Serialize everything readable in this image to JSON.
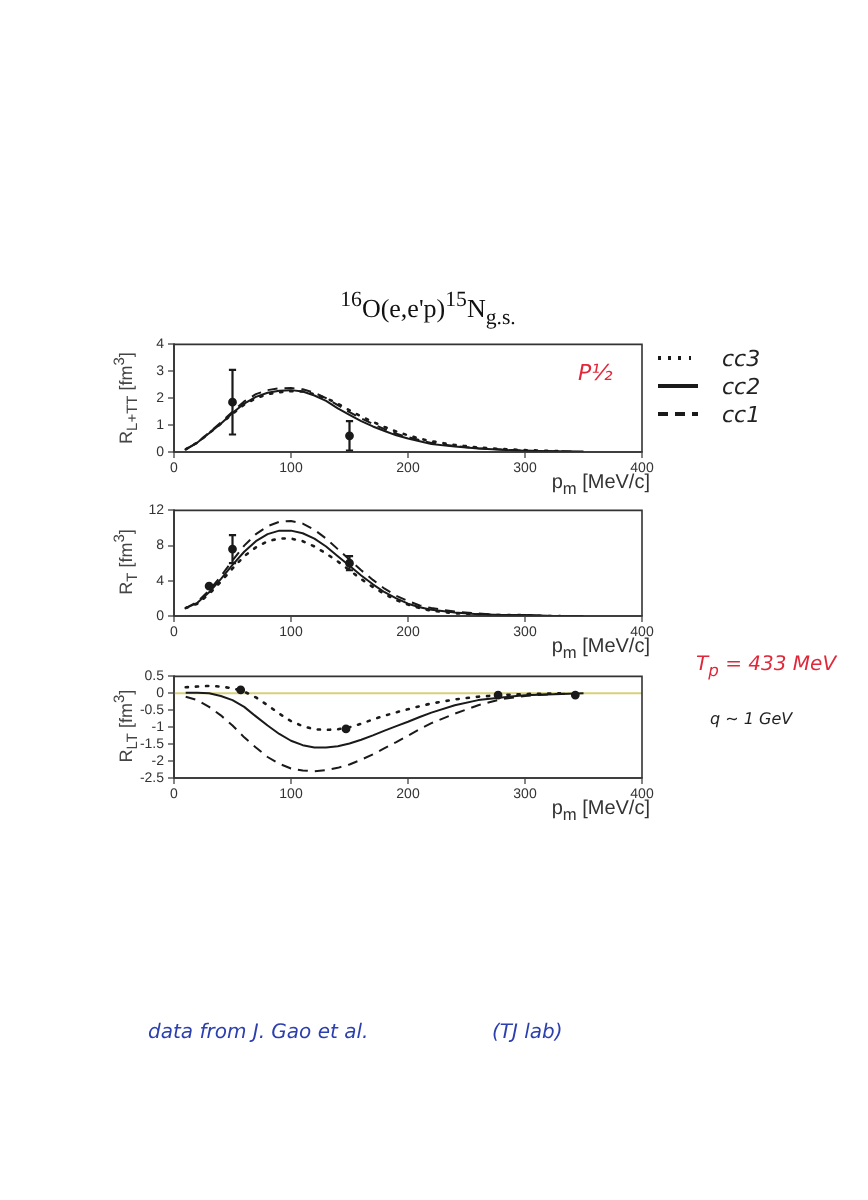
{
  "chart_data": [
    {
      "type": "line",
      "title": "$^{16}$O(e,e'p)$^{15}$N$_{g.s.}$",
      "xlabel": "p$_{m}$ [MeV/c]",
      "ylabel": "R$_{L+TT}$ [fm$^{3}$]",
      "xlim": [
        0,
        400
      ],
      "xticks": [
        0,
        100,
        200,
        300,
        400
      ],
      "ylim": [
        0,
        4
      ],
      "yticks": [
        0,
        1,
        2,
        3,
        4
      ],
      "legend": "right",
      "annotations": [
        "P½"
      ],
      "series": [
        {
          "name": "cc3",
          "color": "#1a1a1a",
          "line_style": "dotted",
          "x": [
            10,
            20,
            30,
            40,
            50,
            60,
            70,
            80,
            90,
            100,
            110,
            120,
            130,
            140,
            150,
            160,
            170,
            180,
            190,
            200,
            210,
            220,
            240,
            260,
            280,
            300,
            315,
            330
          ],
          "values": [
            0.1,
            0.35,
            0.7,
            1.05,
            1.42,
            1.76,
            2.0,
            2.15,
            2.22,
            2.26,
            2.25,
            2.15,
            2.0,
            1.8,
            1.55,
            1.32,
            1.12,
            0.93,
            0.76,
            0.62,
            0.5,
            0.4,
            0.26,
            0.17,
            0.11,
            0.07,
            0.05,
            0.03
          ]
        },
        {
          "name": "cc2",
          "color": "#1a1a1a",
          "line_style": "solid",
          "x": [
            10,
            20,
            30,
            40,
            50,
            60,
            70,
            80,
            90,
            100,
            110,
            120,
            130,
            140,
            150,
            160,
            170,
            180,
            190,
            200,
            210,
            220,
            240,
            260,
            280,
            300,
            325,
            350
          ],
          "values": [
            0.1,
            0.35,
            0.7,
            1.05,
            1.45,
            1.8,
            2.05,
            2.2,
            2.28,
            2.3,
            2.25,
            2.1,
            1.9,
            1.62,
            1.38,
            1.15,
            0.95,
            0.78,
            0.62,
            0.5,
            0.4,
            0.3,
            0.2,
            0.13,
            0.08,
            0.05,
            0.03,
            0.02
          ]
        },
        {
          "name": "cc1",
          "color": "#1a1a1a",
          "line_style": "dashed",
          "x": [
            10,
            20,
            30,
            40,
            50,
            60,
            70,
            80,
            90,
            100,
            110,
            120,
            130,
            140,
            150,
            160,
            170,
            180,
            190,
            200,
            210,
            220,
            240,
            260,
            280,
            300,
            320,
            340
          ],
          "values": [
            0.1,
            0.35,
            0.72,
            1.1,
            1.5,
            1.88,
            2.15,
            2.3,
            2.37,
            2.38,
            2.33,
            2.2,
            2.0,
            1.74,
            1.48,
            1.25,
            1.04,
            0.85,
            0.68,
            0.55,
            0.44,
            0.34,
            0.22,
            0.14,
            0.09,
            0.05,
            0.03,
            0.02
          ]
        },
        {
          "type": "scatter",
          "color": "#1a1a1a",
          "marker": "circle",
          "x": [
            50,
            150
          ],
          "values": [
            1.85,
            0.6
          ],
          "errors": [
            1.2,
            0.55
          ]
        }
      ]
    },
    {
      "type": "line",
      "xlabel": "p$_{m}$ [MeV/c]",
      "ylabel": "R$_{T}$ [fm$^{3}$]",
      "xlim": [
        0,
        400
      ],
      "xticks": [
        0,
        100,
        200,
        300,
        400
      ],
      "ylim": [
        0,
        12
      ],
      "yticks": [
        0,
        4,
        8,
        12
      ],
      "series": [
        {
          "color": "#1a1a1a",
          "line_style": "dotted",
          "x": [
            10,
            20,
            30,
            40,
            50,
            60,
            70,
            80,
            90,
            100,
            110,
            120,
            130,
            140,
            150,
            160,
            170,
            180,
            190,
            200,
            210,
            220,
            240,
            260,
            280,
            300,
            315,
            330
          ],
          "values": [
            0.9,
            1.4,
            2.5,
            3.9,
            5.4,
            6.8,
            7.8,
            8.5,
            8.8,
            8.8,
            8.5,
            7.9,
            7.1,
            6.2,
            5.2,
            4.2,
            3.3,
            2.5,
            1.8,
            1.3,
            0.9,
            0.6,
            0.3,
            0.2,
            0.1,
            0.1,
            0,
            0
          ]
        },
        {
          "color": "#1a1a1a",
          "line_style": "solid",
          "x": [
            10,
            20,
            30,
            40,
            50,
            60,
            70,
            80,
            90,
            100,
            110,
            120,
            130,
            140,
            150,
            160,
            170,
            180,
            190,
            200,
            210,
            220,
            240,
            260,
            280,
            300,
            325,
            350
          ],
          "values": [
            0.9,
            1.5,
            2.7,
            4.2,
            5.8,
            7.3,
            8.5,
            9.3,
            9.7,
            9.7,
            9.4,
            8.8,
            7.9,
            6.8,
            5.7,
            4.6,
            3.6,
            2.7,
            2.0,
            1.4,
            1.0,
            0.7,
            0.4,
            0.2,
            0.1,
            0.1,
            0,
            0
          ]
        },
        {
          "color": "#1a1a1a",
          "line_style": "dashed",
          "x": [
            10,
            20,
            30,
            40,
            50,
            60,
            70,
            80,
            90,
            100,
            110,
            120,
            130,
            140,
            150,
            160,
            170,
            180,
            190,
            200,
            210,
            220,
            240,
            260,
            280,
            300,
            320,
            340
          ],
          "values": [
            0.9,
            1.6,
            2.9,
            4.5,
            6.3,
            8.0,
            9.3,
            10.2,
            10.7,
            10.8,
            10.5,
            9.8,
            8.8,
            7.6,
            6.4,
            5.2,
            4.1,
            3.1,
            2.3,
            1.7,
            1.2,
            0.9,
            0.5,
            0.3,
            0.1,
            0.1,
            0,
            0
          ]
        },
        {
          "type": "scatter",
          "color": "#1a1a1a",
          "marker": "circle",
          "x": [
            30,
            50,
            150
          ],
          "values": [
            3.4,
            7.6,
            6.0
          ],
          "errors": [
            null,
            1.6,
            0.8
          ]
        }
      ]
    },
    {
      "type": "line",
      "xlabel": "p$_{m}$ [MeV/c]",
      "ylabel": "R$_{LT}$ [fm$^{3}$]",
      "xlim": [
        0,
        400
      ],
      "xticks": [
        0,
        100,
        200,
        300,
        400
      ],
      "ylim": [
        -2.5,
        0.5
      ],
      "yticks": [
        -2.5,
        -2,
        -1.5,
        -1,
        -0.5,
        0,
        0.5
      ],
      "ref_lines": [
        {
          "axis": "y",
          "value": 0,
          "color": "#d8d07a"
        }
      ],
      "annotations": [
        "T$_{p}$ = 433 MeV",
        "q ~ 1 GeV",
        "data from J. Gao et al.",
        "(TJ lab)"
      ],
      "series": [
        {
          "color": "#1a1a1a",
          "line_style": "dotted",
          "x": [
            10,
            20,
            30,
            40,
            50,
            60,
            70,
            80,
            90,
            100,
            110,
            120,
            130,
            140,
            150,
            160,
            170,
            180,
            190,
            200,
            210,
            220,
            240,
            260,
            280,
            300,
            315,
            330
          ],
          "values": [
            0.18,
            0.2,
            0.22,
            0.2,
            0.15,
            0.05,
            -0.12,
            -0.35,
            -0.6,
            -0.82,
            -0.97,
            -1.06,
            -1.08,
            -1.06,
            -1.0,
            -0.9,
            -0.77,
            -0.66,
            -0.56,
            -0.47,
            -0.38,
            -0.3,
            -0.18,
            -0.1,
            -0.05,
            -0.02,
            -0.01,
            0
          ]
        },
        {
          "color": "#1a1a1a",
          "line_style": "solid",
          "x": [
            10,
            20,
            30,
            40,
            50,
            60,
            70,
            80,
            90,
            100,
            110,
            120,
            130,
            140,
            150,
            160,
            170,
            180,
            190,
            200,
            210,
            220,
            240,
            260,
            280,
            300,
            325,
            350
          ],
          "values": [
            0.02,
            0.02,
            0,
            -0.08,
            -0.2,
            -0.4,
            -0.68,
            -0.95,
            -1.2,
            -1.4,
            -1.53,
            -1.6,
            -1.6,
            -1.56,
            -1.48,
            -1.37,
            -1.24,
            -1.1,
            -0.97,
            -0.84,
            -0.7,
            -0.57,
            -0.35,
            -0.2,
            -0.12,
            -0.06,
            -0.03,
            0
          ]
        },
        {
          "color": "#1a1a1a",
          "line_style": "dashed",
          "x": [
            10,
            20,
            30,
            40,
            50,
            60,
            70,
            80,
            90,
            100,
            110,
            120,
            130,
            140,
            150,
            160,
            170,
            180,
            190,
            200,
            210,
            220,
            240,
            260,
            280,
            300,
            320,
            340
          ],
          "values": [
            -0.1,
            -0.2,
            -0.4,
            -0.65,
            -0.95,
            -1.3,
            -1.6,
            -1.88,
            -2.08,
            -2.22,
            -2.28,
            -2.3,
            -2.27,
            -2.2,
            -2.1,
            -1.96,
            -1.8,
            -1.62,
            -1.44,
            -1.25,
            -1.06,
            -0.88,
            -0.6,
            -0.35,
            -0.17,
            -0.08,
            -0.03,
            0
          ]
        },
        {
          "type": "scatter",
          "color": "#1a1a1a",
          "marker": "circle",
          "x": [
            57,
            147,
            277,
            343
          ],
          "values": [
            0.1,
            -1.05,
            -0.05,
            -0.05
          ]
        }
      ]
    }
  ]
}
